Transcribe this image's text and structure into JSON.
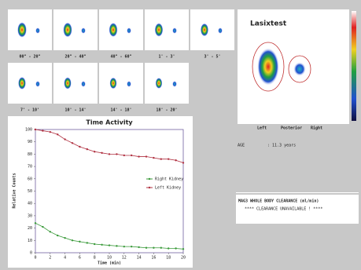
{
  "thumbnails": {
    "labels": [
      "00\" - 20\"",
      "20\" - 40\"",
      "40\" - 60\"",
      "1' - 3'",
      "3' - 5'",
      "7' - 10'",
      "10' - 14'",
      "14' - 18'",
      "18' - 20'"
    ]
  },
  "panel": {
    "title": "Lasixtest",
    "labels": [
      "Left",
      "Posterior",
      "Right"
    ]
  },
  "age": {
    "label": "AGE",
    "value": ": 11.3 years"
  },
  "clearance": {
    "title": "MAG3 WHOLE BODY CLEARANCE (ml/min)",
    "message": "**** CLEARANCE UNAVAILABLE ! ****"
  },
  "chart_data": {
    "type": "line",
    "title": "Time Activity",
    "x_label": "Time (min)",
    "y_label": "Relative Counts",
    "x": [
      0,
      1,
      2,
      3,
      4,
      5,
      6,
      7,
      8,
      9,
      10,
      11,
      12,
      13,
      14,
      15,
      16,
      17,
      18,
      19,
      20
    ],
    "series": [
      {
        "name": "Right Kidney",
        "color": "#3a9a3a",
        "values": [
          24,
          21,
          17,
          14,
          12,
          10,
          9,
          8,
          7,
          6.5,
          6,
          5.5,
          5,
          5,
          4.5,
          4,
          4,
          4,
          3.5,
          3.5,
          3
        ]
      },
      {
        "name": "Left Kidney",
        "color": "#b03040",
        "values": [
          100,
          99,
          98,
          96,
          92,
          89,
          86,
          84,
          82,
          81,
          80,
          80,
          79,
          79,
          78,
          78,
          77,
          76,
          76,
          75,
          73
        ]
      }
    ],
    "xlim": [
      0,
      20
    ],
    "ylim": [
      0,
      100
    ],
    "xticks": [
      0,
      2,
      4,
      6,
      8,
      10,
      12,
      14,
      16,
      18,
      20
    ],
    "yticks": [
      0,
      10,
      20,
      30,
      40,
      50,
      60,
      70,
      80,
      90,
      100
    ],
    "legend": "right"
  }
}
